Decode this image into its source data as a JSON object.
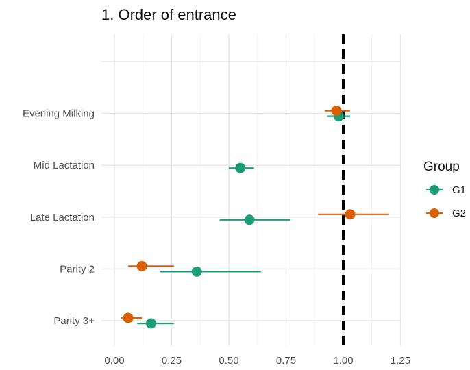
{
  "chart_data": {
    "type": "scatter",
    "subtype": "forest-plot",
    "title": "1. Order of entrance",
    "xlabel": "",
    "ylabel": "",
    "xlim": [
      -0.05,
      1.27
    ],
    "x_ticks": [
      0.0,
      0.25,
      0.5,
      0.75,
      1.0,
      1.25
    ],
    "x_tick_labels": [
      "0.00",
      "0.25",
      "0.50",
      "0.75",
      "1.00",
      "1.25"
    ],
    "categories": [
      "Evening Milking",
      "Mid Lactation",
      "Late Lactation",
      "Parity 2",
      "Parity 3+"
    ],
    "reference_line": {
      "x": 1.0,
      "style": "dashed"
    },
    "grid": true,
    "legend": {
      "title": "Group",
      "position": "right"
    },
    "series": [
      {
        "name": "G1",
        "color": "#1b9e77",
        "points": [
          {
            "category": "Evening Milking",
            "estimate": 0.98,
            "lower": 0.93,
            "upper": 1.03
          },
          {
            "category": "Mid Lactation",
            "estimate": 0.55,
            "lower": 0.5,
            "upper": 0.61
          },
          {
            "category": "Late Lactation",
            "estimate": 0.59,
            "lower": 0.46,
            "upper": 0.77
          },
          {
            "category": "Parity 2",
            "estimate": 0.36,
            "lower": 0.2,
            "upper": 0.64
          },
          {
            "category": "Parity 3+",
            "estimate": 0.16,
            "lower": 0.1,
            "upper": 0.26
          }
        ]
      },
      {
        "name": "G2",
        "color": "#d95f02",
        "points": [
          {
            "category": "Evening Milking",
            "estimate": 0.97,
            "lower": 0.92,
            "upper": 1.03
          },
          {
            "category": "Late Lactation",
            "estimate": 1.03,
            "lower": 0.89,
            "upper": 1.2
          },
          {
            "category": "Parity 2",
            "estimate": 0.12,
            "lower": 0.06,
            "upper": 0.26
          },
          {
            "category": "Parity 3+",
            "estimate": 0.06,
            "lower": 0.03,
            "upper": 0.12
          }
        ]
      }
    ]
  }
}
